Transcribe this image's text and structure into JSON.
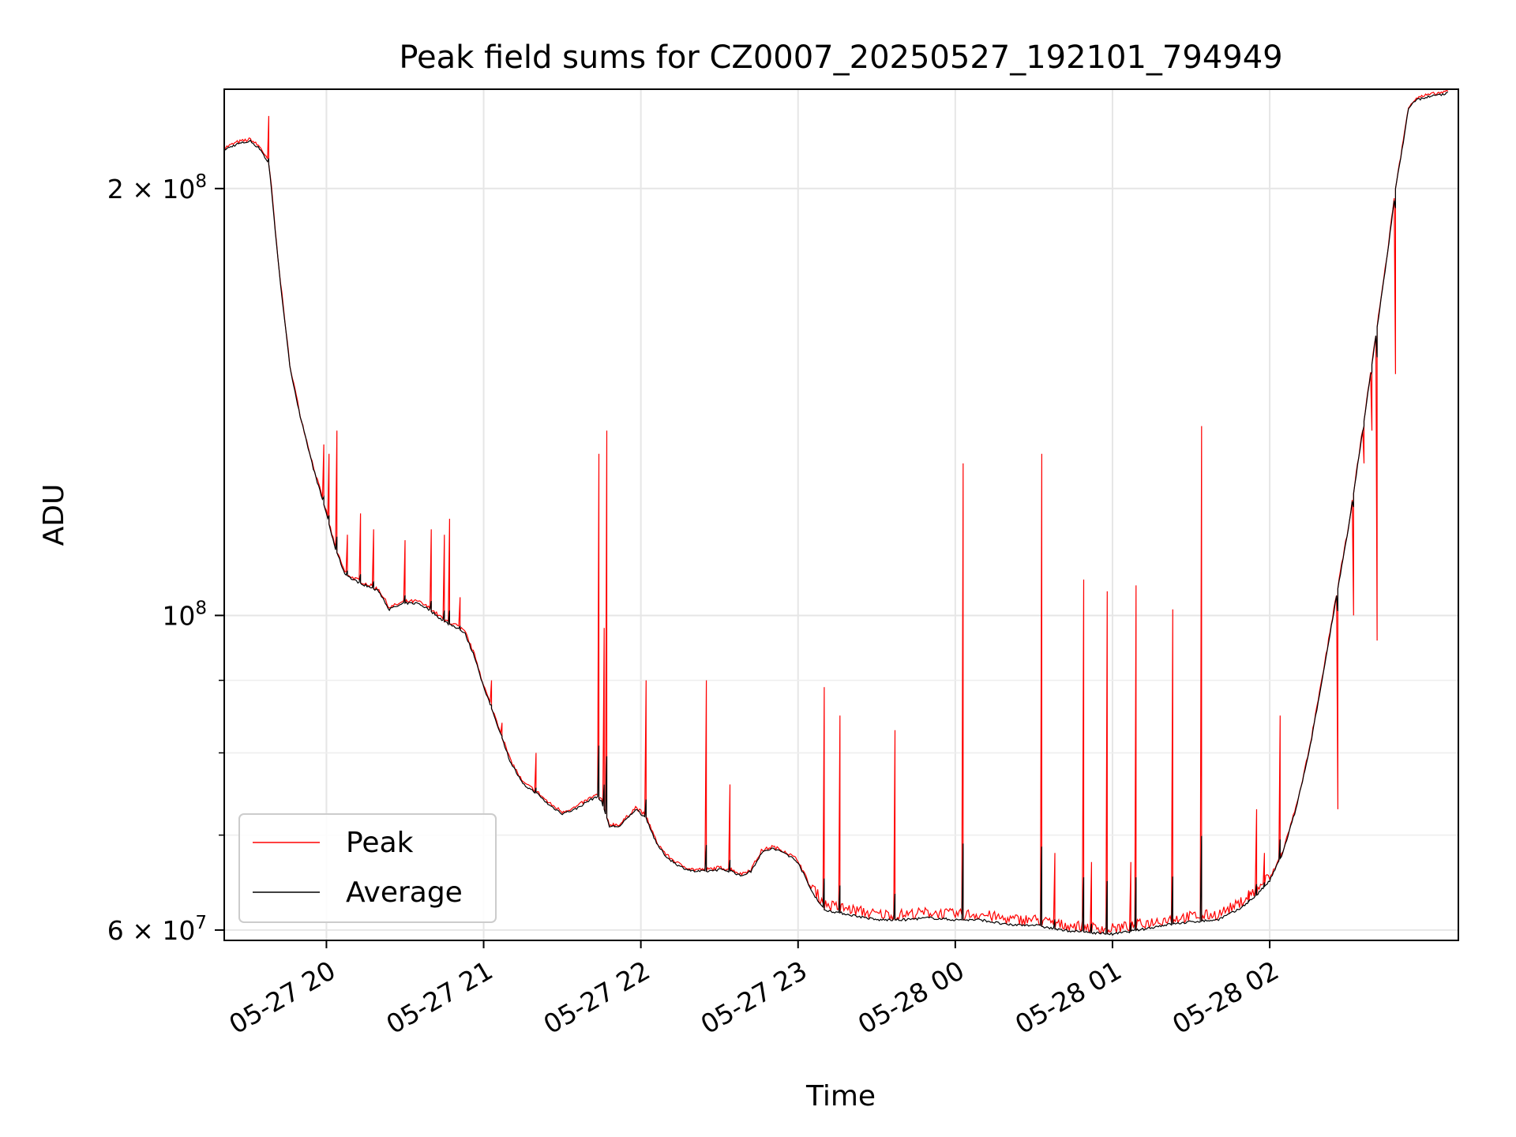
{
  "chart_data": {
    "type": "line",
    "title": "Peak field sums for CZ0007_20250527_192101_794949",
    "xlabel": "Time",
    "ylabel": "ADU",
    "yscale": "log",
    "xlim": [
      "05-27 19:21",
      "05-28 02:12"
    ],
    "ylim": [
      59000000,
      235000000
    ],
    "grid": true,
    "legend_position": "lower-left",
    "x_ticks": [
      "05-27 20",
      "05-27 21",
      "05-27 22",
      "05-27 23",
      "05-28 00",
      "05-28 01",
      "05-28 02"
    ],
    "y_ticks": [
      {
        "value": 200000000,
        "base": "2 × 10",
        "exp": "8"
      },
      {
        "value": 100000000,
        "base": "10",
        "exp": "8"
      },
      {
        "value": 60000000,
        "base": "6 × 10",
        "exp": "7"
      }
    ],
    "y_minor_ticks": [
      70000000,
      80000000,
      90000000
    ],
    "x_unit": "minutes",
    "x_reference": "05-27 19:00",
    "series": [
      {
        "name": "Average",
        "color": "#000000",
        "points": [
          [
            21,
            213000000
          ],
          [
            26,
            215000000
          ],
          [
            31,
            216000000
          ],
          [
            35,
            213000000
          ],
          [
            38,
            208000000
          ],
          [
            39,
            200000000
          ],
          [
            41,
            182000000
          ],
          [
            43,
            168000000
          ],
          [
            46,
            150000000
          ],
          [
            50,
            138000000
          ],
          [
            55,
            127000000
          ],
          [
            60,
            118000000
          ],
          [
            63,
            112000000
          ],
          [
            67,
            107000000
          ],
          [
            70,
            106000000
          ],
          [
            75,
            105000000
          ],
          [
            80,
            104000000
          ],
          [
            84,
            101000000
          ],
          [
            90,
            102000000
          ],
          [
            95,
            102000000
          ],
          [
            99,
            101000000
          ],
          [
            105,
            99000000
          ],
          [
            110,
            98000000
          ],
          [
            113,
            97000000
          ],
          [
            117,
            93000000
          ],
          [
            120,
            89000000
          ],
          [
            125,
            84000000
          ],
          [
            130,
            79000000
          ],
          [
            135,
            76000000
          ],
          [
            140,
            75000000
          ],
          [
            145,
            73500000
          ],
          [
            150,
            72500000
          ],
          [
            155,
            73000000
          ],
          [
            160,
            74000000
          ],
          [
            163,
            74500000
          ],
          [
            165,
            74000000
          ],
          [
            168,
            71000000
          ],
          [
            172,
            71000000
          ],
          [
            178,
            73000000
          ],
          [
            182,
            72000000
          ],
          [
            186,
            69000000
          ],
          [
            190,
            67500000
          ],
          [
            195,
            66500000
          ],
          [
            200,
            66000000
          ],
          [
            205,
            66000000
          ],
          [
            210,
            66200000
          ],
          [
            215,
            66000000
          ],
          [
            218,
            65500000
          ],
          [
            222,
            66000000
          ],
          [
            226,
            68000000
          ],
          [
            230,
            68500000
          ],
          [
            235,
            68000000
          ],
          [
            240,
            67000000
          ],
          [
            245,
            64000000
          ],
          [
            250,
            62000000
          ],
          [
            260,
            61500000
          ],
          [
            270,
            61000000
          ],
          [
            280,
            61000000
          ],
          [
            290,
            61200000
          ],
          [
            300,
            61000000
          ],
          [
            310,
            61000000
          ],
          [
            320,
            60500000
          ],
          [
            330,
            60500000
          ],
          [
            340,
            60000000
          ],
          [
            350,
            59800000
          ],
          [
            360,
            59600000
          ],
          [
            370,
            60000000
          ],
          [
            380,
            60500000
          ],
          [
            390,
            60800000
          ],
          [
            400,
            61000000
          ],
          [
            408,
            62000000
          ],
          [
            415,
            63500000
          ],
          [
            420,
            65000000
          ],
          [
            425,
            68000000
          ],
          [
            430,
            73000000
          ],
          [
            435,
            80000000
          ],
          [
            440,
            90000000
          ],
          [
            445,
            102000000
          ],
          [
            450,
            115000000
          ],
          [
            455,
            133000000
          ],
          [
            460,
            155000000
          ],
          [
            465,
            180000000
          ],
          [
            468,
            200000000
          ],
          [
            470,
            210000000
          ],
          [
            473,
            228000000
          ],
          [
            476,
            231000000
          ],
          [
            480,
            232000000
          ],
          [
            488,
            233500000
          ]
        ]
      },
      {
        "name": "Peak",
        "color": "#ff0000",
        "spikes": [
          [
            38,
            225000000
          ],
          [
            46,
            150000000
          ],
          [
            59,
            132000000
          ],
          [
            61,
            130000000
          ],
          [
            64,
            135000000
          ],
          [
            68,
            114000000
          ],
          [
            73,
            118000000
          ],
          [
            78,
            115000000
          ],
          [
            90,
            113000000
          ],
          [
            100,
            115000000
          ],
          [
            105,
            114000000
          ],
          [
            107,
            117000000
          ],
          [
            111,
            103000000
          ],
          [
            123,
            90000000
          ],
          [
            127,
            84000000
          ],
          [
            140,
            80000000
          ],
          [
            164,
            130000000
          ],
          [
            166,
            98000000
          ],
          [
            167,
            135000000
          ],
          [
            182,
            90000000
          ],
          [
            205,
            90000000
          ],
          [
            214,
            76000000
          ],
          [
            250,
            89000000
          ],
          [
            256,
            85000000
          ],
          [
            277,
            83000000
          ],
          [
            303,
            128000000
          ],
          [
            333,
            130000000
          ],
          [
            338,
            68000000
          ],
          [
            349,
            106000000
          ],
          [
            352,
            67000000
          ],
          [
            358,
            104000000
          ],
          [
            367,
            67000000
          ],
          [
            369,
            105000000
          ],
          [
            383,
            101000000
          ],
          [
            394,
            136000000
          ],
          [
            412,
            64000000
          ],
          [
            415,
            73000000
          ],
          [
            418,
            68000000
          ],
          [
            424,
            85000000
          ],
          [
            446,
            73000000
          ],
          [
            461,
            96000000
          ],
          [
            452,
            100000000
          ],
          [
            456,
            128000000
          ],
          [
            459,
            135000000
          ],
          [
            468,
            148000000
          ]
        ]
      }
    ]
  }
}
